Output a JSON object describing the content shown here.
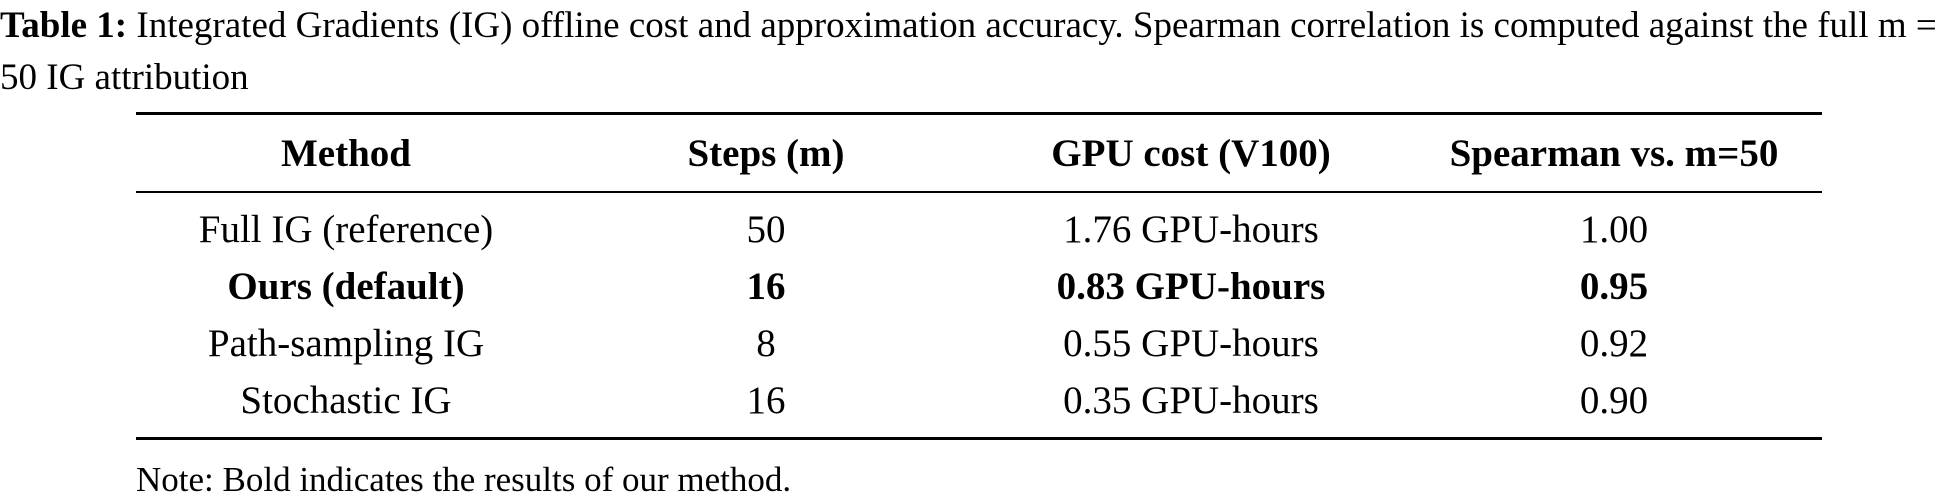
{
  "caption": {
    "label": "Table 1:",
    "text": "Integrated Gradients (IG) offline cost and approximation accuracy. Spearman correlation is computed against the full m = 50 IG attribution"
  },
  "table": {
    "headers": [
      "Method",
      "Steps (m)",
      "GPU cost (V100)",
      "Spearman vs. m=50"
    ],
    "rows": [
      {
        "method": "Full IG (reference)",
        "steps": "50",
        "gpu_cost": "1.76 GPU-hours",
        "spearman": "1.00"
      },
      {
        "method": "Ours (default)",
        "steps": "16",
        "gpu_cost": "0.83 GPU-hours",
        "spearman": "0.95"
      },
      {
        "method": "Path-sampling IG",
        "steps": "8",
        "gpu_cost": "0.55 GPU-hours",
        "spearman": "0.92"
      },
      {
        "method": "Stochastic IG",
        "steps": "16",
        "gpu_cost": "0.35 GPU-hours",
        "spearman": "0.90"
      }
    ]
  },
  "note": "Note: Bold indicates the results of our method."
}
